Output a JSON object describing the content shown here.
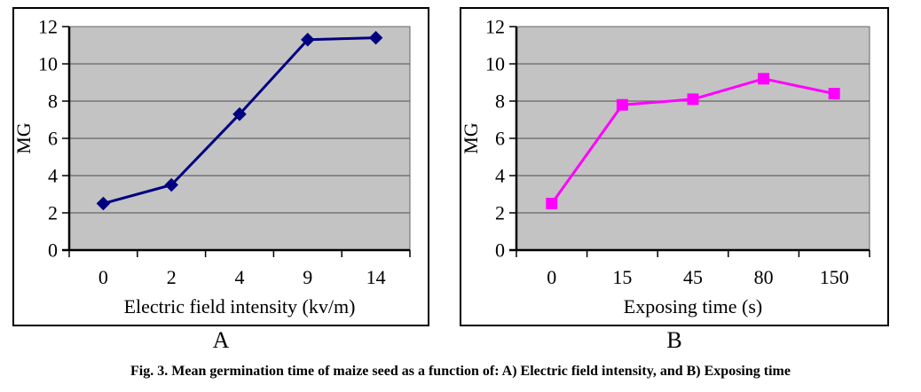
{
  "caption": "Fig. 3. Mean germination time of maize seed as a function of: A) Electric field intensity, and B) Exposing time",
  "panels": [
    {
      "label": "A"
    },
    {
      "label": "B"
    }
  ],
  "chart_data": [
    {
      "type": "line",
      "panel": "A",
      "title": "",
      "categories": [
        "0",
        "2",
        "4",
        "9",
        "14"
      ],
      "series": [
        {
          "name": "MG",
          "color": "#000080",
          "marker": "diamond",
          "values": [
            2.5,
            3.5,
            7.3,
            11.3,
            11.4
          ]
        }
      ],
      "xlabel": "Electric field intensity (kv/m)",
      "ylabel": "MG",
      "ylim": [
        0,
        12
      ],
      "ytick_step": 2,
      "yticks": [
        0,
        2,
        4,
        6,
        8,
        10,
        12
      ],
      "grid": true,
      "legend_position": "none",
      "plot_bg": "#c3c3c3",
      "gridline_color": "#666666"
    },
    {
      "type": "line",
      "panel": "B",
      "title": "",
      "categories": [
        "0",
        "15",
        "45",
        "80",
        "150"
      ],
      "series": [
        {
          "name": "MG",
          "color": "#ff00ff",
          "marker": "square",
          "values": [
            2.5,
            7.8,
            8.1,
            9.2,
            8.4
          ]
        }
      ],
      "xlabel": "Exposing time (s)",
      "ylabel": "MG",
      "ylim": [
        0,
        12
      ],
      "ytick_step": 2,
      "yticks": [
        0,
        2,
        4,
        6,
        8,
        10,
        12
      ],
      "grid": true,
      "legend_position": "none",
      "plot_bg": "#c3c3c3",
      "gridline_color": "#666666"
    }
  ]
}
